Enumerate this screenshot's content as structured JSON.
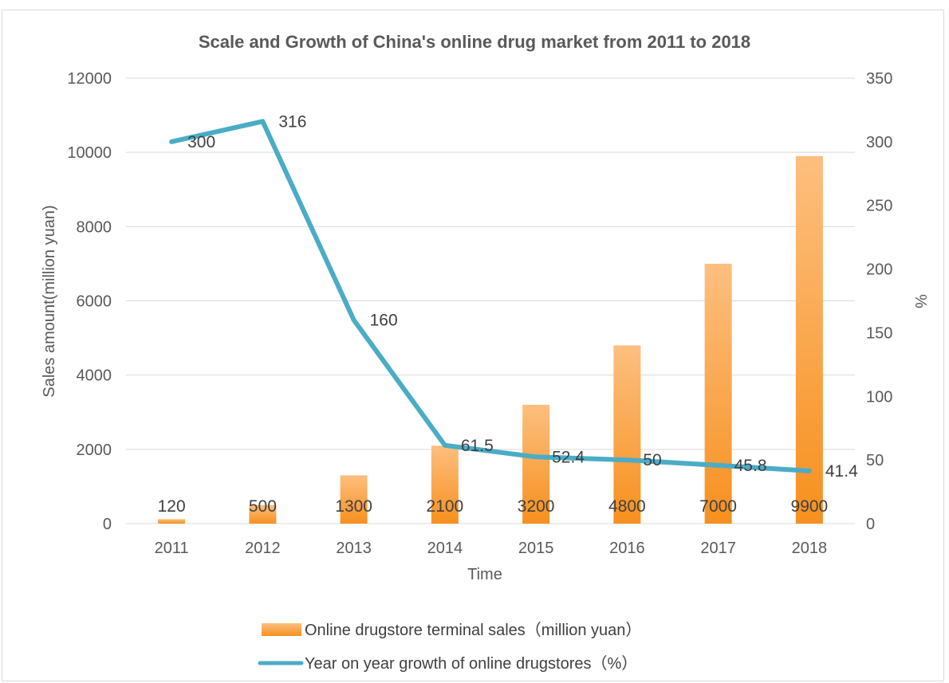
{
  "chart_data": {
    "type": "bar",
    "title": "Scale and Growth of China's online drug market from 2011 to 2018",
    "xlabel": "Time",
    "ylabel": "Sales amount(million yuan)",
    "y2label": "%",
    "categories": [
      "2011",
      "2012",
      "2013",
      "2014",
      "2015",
      "2016",
      "2017",
      "2018"
    ],
    "ylim": [
      0,
      12000
    ],
    "y2lim": [
      0,
      350
    ],
    "yticks": [
      "0",
      "2000",
      "4000",
      "6000",
      "8000",
      "10000",
      "12000"
    ],
    "y2ticks": [
      "0",
      "50",
      "100",
      "150",
      "200",
      "250",
      "300",
      "350"
    ],
    "grid": true,
    "legend_position": "bottom",
    "series": [
      {
        "name": "Online drugstore terminal sales（million yuan）",
        "type": "bar",
        "axis": "left",
        "color": "#f79433",
        "values": [
          120,
          500,
          1300,
          2100,
          3200,
          4800,
          7000,
          9900
        ],
        "labels": [
          "120",
          "500",
          "1300",
          "2100",
          "3200",
          "4800",
          "7000",
          "9900"
        ]
      },
      {
        "name": "Year on year growth of online drugstores（%）",
        "type": "line",
        "axis": "right",
        "color": "#4bacc6",
        "values": [
          300,
          316,
          160,
          61.5,
          52.4,
          50,
          45.8,
          41.4
        ],
        "labels": [
          "300",
          "316",
          "160",
          "61.5",
          "52.4",
          "50",
          "45.8",
          "41.4"
        ]
      }
    ]
  }
}
